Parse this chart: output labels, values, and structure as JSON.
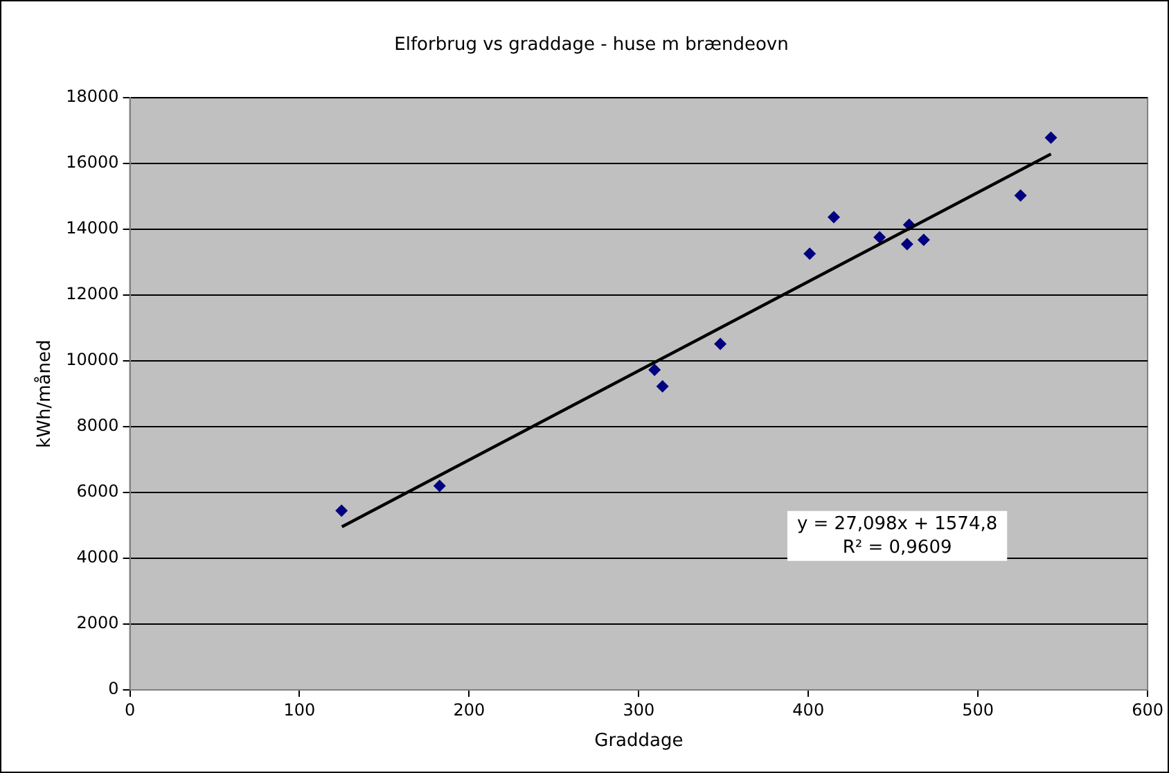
{
  "chart_data": {
    "type": "scatter",
    "title": "Elforbrug vs graddage - huse m brændeovn",
    "xlabel": "Graddage",
    "ylabel": "kWh/måned",
    "x": [
      124.8,
      182.6,
      309.3,
      314,
      348.1,
      400.8,
      415,
      442,
      459.4,
      458.2,
      468,
      525.1,
      543
    ],
    "series": [
      {
        "color": "#000080",
        "marker": "diamond",
        "values": [
          5450,
          6200,
          9730,
          9230,
          10520,
          13260,
          14370,
          13760,
          14140,
          13550,
          13680,
          15030,
          16790
        ]
      },
      {
        "type": "line",
        "color": "#000000",
        "marker": "none",
        "line_style": "solid",
        "x": [
          125,
          543
        ],
        "values": [
          4960,
          16290
        ]
      }
    ],
    "xlim": [
      0,
      600
    ],
    "xticks": [
      0,
      100,
      200,
      300,
      400,
      500,
      600
    ],
    "ylim": [
      0,
      18000
    ],
    "yticks": [
      0,
      2000,
      4000,
      6000,
      8000,
      10000,
      12000,
      14000,
      16000,
      18000
    ],
    "grid": "y",
    "legend": false,
    "annotations": [
      "y = 27,098x + 1574,8",
      "R² = 0,9609"
    ]
  }
}
